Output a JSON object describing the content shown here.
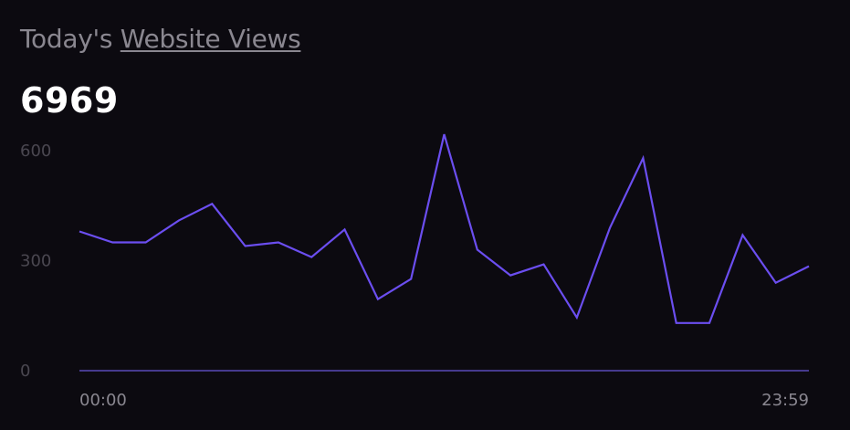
{
  "header": {
    "prefix": "Today's ",
    "link": "Website Views"
  },
  "total": "6969",
  "colors": {
    "background": "#0c0a10",
    "line": "#6b4ef0",
    "axis": "#5a4bb8",
    "muted_text": "#8a8790",
    "tick_text": "#4a4750"
  },
  "chart_data": {
    "type": "line",
    "title": "",
    "xlabel": "",
    "ylabel": "",
    "ylim": [
      0,
      700
    ],
    "y_ticks": [
      0,
      300,
      600
    ],
    "x_tick_labels": [
      "00:00",
      "23:59"
    ],
    "grid": false,
    "values": [
      380,
      350,
      350,
      410,
      455,
      340,
      350,
      310,
      385,
      195,
      250,
      645,
      330,
      260,
      290,
      145,
      390,
      580,
      130,
      130,
      370,
      240,
      285
    ]
  }
}
